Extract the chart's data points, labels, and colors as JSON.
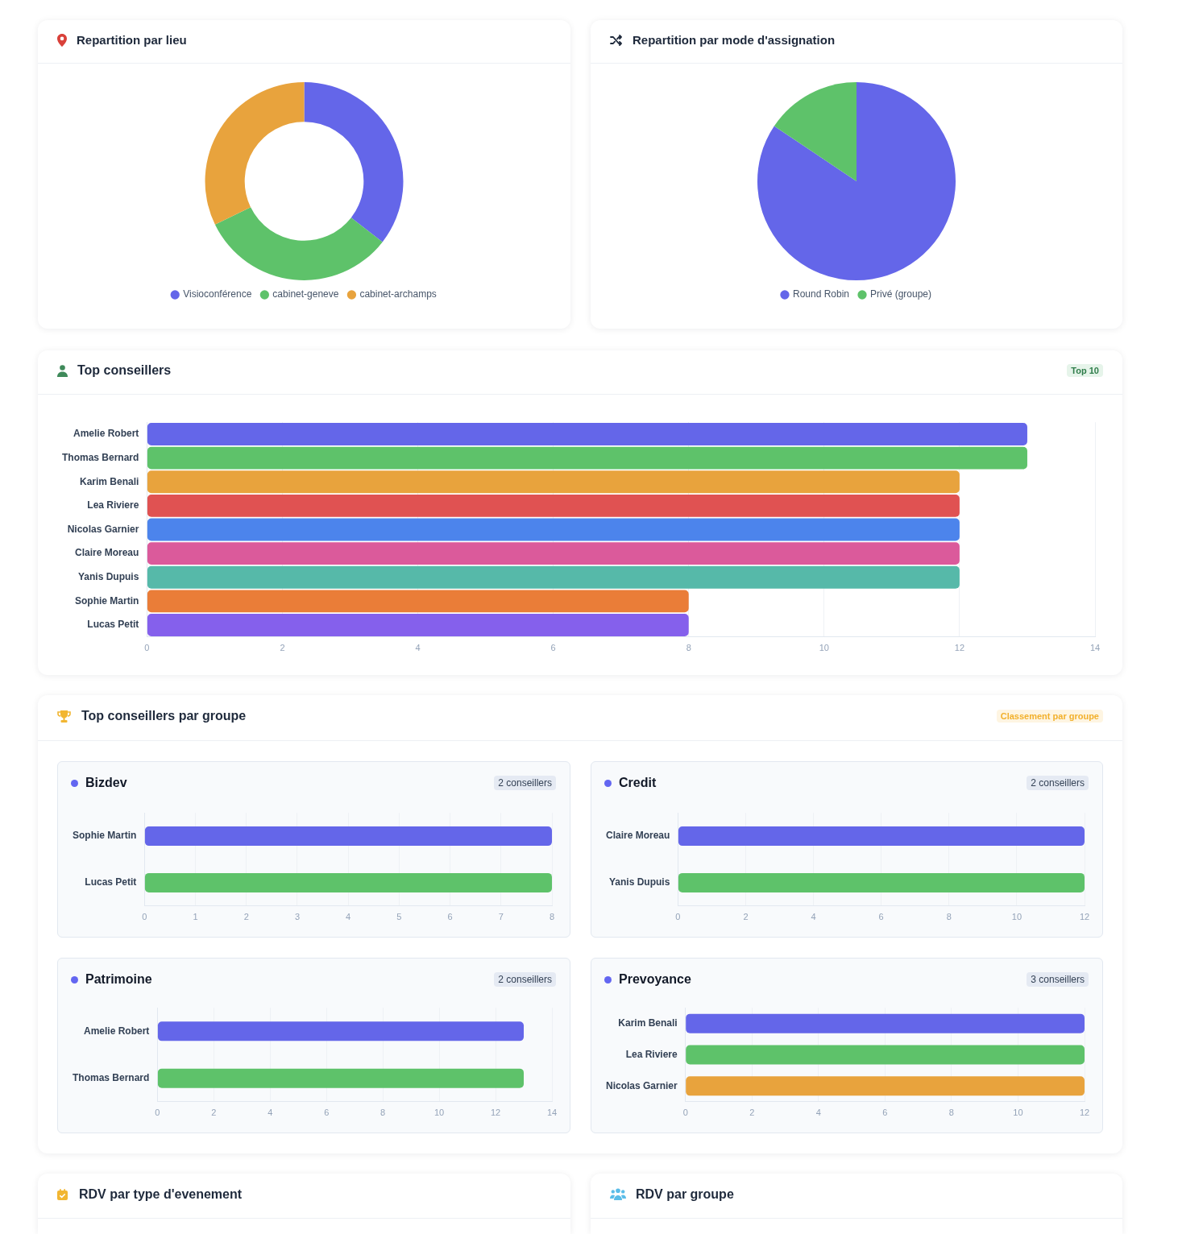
{
  "chart_data": [
    {
      "type": "donut",
      "title": "Repartition par lieu",
      "categories": [
        "Visioconférence",
        "cabinet-geneve",
        "cabinet-archamps"
      ],
      "values": [
        35.5,
        32.3,
        32.2
      ],
      "colors": [
        "#6466e9",
        "#5ec26a",
        "#e8a33d"
      ],
      "legend": "bottom"
    },
    {
      "type": "pie",
      "title": "Repartition par mode d'assignation",
      "categories": [
        "Round Robin",
        "Privé (groupe)"
      ],
      "values": [
        84.4,
        15.6
      ],
      "colors": [
        "#6466e9",
        "#5ec26a"
      ],
      "legend": "bottom"
    },
    {
      "type": "bar",
      "orientation": "horizontal",
      "title": "Top conseillers",
      "annotations": [
        "Top 10"
      ],
      "categories": [
        "Amelie Robert",
        "Thomas Bernard",
        "Karim Benali",
        "Lea Riviere",
        "Nicolas Garnier",
        "Claire Moreau",
        "Yanis Dupuis",
        "Sophie Martin",
        "Lucas Petit"
      ],
      "values": [
        13,
        13,
        12,
        12,
        12,
        12,
        12,
        8,
        8
      ],
      "colors": [
        "#6466e9",
        "#5ec26a",
        "#e8a33d",
        "#e05252",
        "#4c84ec",
        "#db5a9b",
        "#56b9a9",
        "#ea7d38",
        "#8560ec"
      ],
      "xlim": [
        0,
        14
      ],
      "xticks": [
        0,
        2,
        4,
        6,
        8,
        10,
        12,
        14
      ],
      "grid": "x"
    },
    {
      "type": "other",
      "title": "Top conseillers par groupe",
      "annotations": [
        "Classement par groupe"
      ]
    },
    {
      "type": "bar",
      "orientation": "horizontal",
      "title": "Bizdev",
      "annotations": [
        "2 conseillers"
      ],
      "categories": [
        "Sophie Martin",
        "Lucas Petit"
      ],
      "values": [
        8,
        8
      ],
      "colors": [
        "#6466e9",
        "#5ec26a"
      ],
      "xlim": [
        0,
        8
      ],
      "xticks": [
        0,
        1,
        2,
        3,
        4,
        5,
        6,
        7,
        8
      ],
      "grid": "x"
    },
    {
      "type": "bar",
      "orientation": "horizontal",
      "title": "Credit",
      "annotations": [
        "2 conseillers"
      ],
      "categories": [
        "Claire Moreau",
        "Yanis Dupuis"
      ],
      "values": [
        12,
        12
      ],
      "colors": [
        "#6466e9",
        "#5ec26a"
      ],
      "xlim": [
        0,
        12
      ],
      "xticks": [
        0,
        2,
        4,
        6,
        8,
        10,
        12
      ],
      "grid": "x"
    },
    {
      "type": "bar",
      "orientation": "horizontal",
      "title": "Patrimoine",
      "annotations": [
        "2 conseillers"
      ],
      "categories": [
        "Amelie Robert",
        "Thomas Bernard"
      ],
      "values": [
        13,
        13
      ],
      "colors": [
        "#6466e9",
        "#5ec26a"
      ],
      "xlim": [
        0,
        14
      ],
      "xticks": [
        0,
        2,
        4,
        6,
        8,
        10,
        12,
        14
      ],
      "grid": "x"
    },
    {
      "type": "bar",
      "orientation": "horizontal",
      "title": "Prevoyance",
      "annotations": [
        "3 conseillers"
      ],
      "categories": [
        "Karim Benali",
        "Lea Riviere",
        "Nicolas Garnier"
      ],
      "values": [
        12,
        12,
        12
      ],
      "colors": [
        "#6466e9",
        "#5ec26a",
        "#e8a33d"
      ],
      "xlim": [
        0,
        12
      ],
      "xticks": [
        0,
        2,
        4,
        6,
        8,
        10,
        12
      ],
      "grid": "x"
    },
    {
      "type": "other",
      "title": "RDV par type d'evenement"
    },
    {
      "type": "other",
      "title": "RDV par groupe"
    }
  ]
}
